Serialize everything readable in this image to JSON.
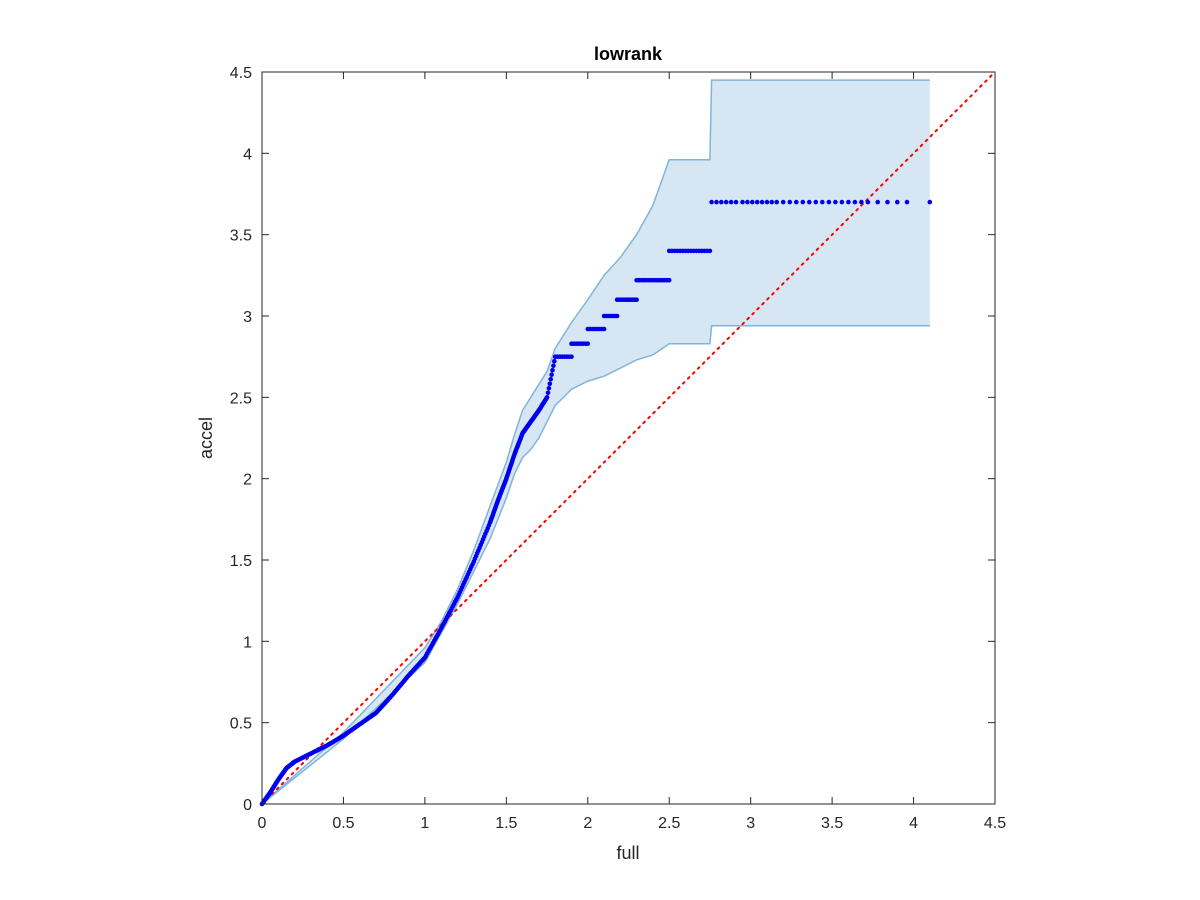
{
  "chart_data": {
    "type": "scatter",
    "title": "lowrank",
    "xlabel": "full",
    "ylabel": "accel",
    "xlim": [
      0,
      4.5
    ],
    "ylim": [
      0,
      4.5
    ],
    "xticks": [
      "0",
      "0.5",
      "1",
      "1.5",
      "2",
      "2.5",
      "3",
      "3.5",
      "4",
      "4.5"
    ],
    "yticks": [
      "0",
      "0.5",
      "1",
      "1.5",
      "2",
      "2.5",
      "3",
      "3.5",
      "4",
      "4.5"
    ],
    "grid": false,
    "reference_line": {
      "style": "dotted",
      "color": "#ff0000",
      "from": [
        0,
        0
      ],
      "to": [
        4.5,
        4.5
      ]
    },
    "colors": {
      "points": "#0000ee",
      "band_fill": "#d6e7f3",
      "band_edge": "#7fb4dc",
      "reference": "#ff0000"
    },
    "curve": {
      "x": [
        0,
        0.05,
        0.1,
        0.15,
        0.2,
        0.3,
        0.4,
        0.5,
        0.6,
        0.7,
        0.8,
        0.9,
        1.0,
        1.1,
        1.2,
        1.3,
        1.4,
        1.45,
        1.5,
        1.55,
        1.6,
        1.65,
        1.7,
        1.75
      ],
      "y": [
        0,
        0.07,
        0.15,
        0.22,
        0.26,
        0.31,
        0.36,
        0.42,
        0.49,
        0.56,
        0.67,
        0.79,
        0.9,
        1.08,
        1.27,
        1.49,
        1.73,
        1.87,
        2.0,
        2.15,
        2.28,
        2.35,
        2.42,
        2.5
      ]
    },
    "band": {
      "x": [
        0,
        0.5,
        1.0,
        1.1,
        1.2,
        1.3,
        1.4,
        1.5,
        1.55,
        1.6,
        1.65,
        1.7,
        1.75,
        1.8,
        1.9,
        2.0,
        2.1,
        2.2,
        2.3,
        2.4,
        2.5,
        2.75,
        2.76,
        4.1
      ],
      "upper": [
        0,
        0.44,
        0.96,
        1.12,
        1.32,
        1.56,
        1.83,
        2.1,
        2.27,
        2.42,
        2.5,
        2.58,
        2.66,
        2.8,
        2.96,
        3.1,
        3.25,
        3.36,
        3.5,
        3.68,
        3.96,
        3.96,
        4.45,
        4.45
      ],
      "lower": [
        0,
        0.4,
        0.87,
        1.05,
        1.23,
        1.43,
        1.63,
        1.88,
        2.03,
        2.13,
        2.18,
        2.25,
        2.35,
        2.45,
        2.55,
        2.6,
        2.63,
        2.68,
        2.73,
        2.76,
        2.83,
        2.83,
        2.94,
        2.94
      ]
    },
    "steps": [
      {
        "y": 2.75,
        "x_from": 1.8,
        "x_to": 1.9,
        "n": 8
      },
      {
        "y": 2.83,
        "x_from": 1.9,
        "x_to": 2.0,
        "n": 8
      },
      {
        "y": 2.92,
        "x_from": 2.0,
        "x_to": 2.1,
        "n": 8
      },
      {
        "y": 3.0,
        "x_from": 2.1,
        "x_to": 2.18,
        "n": 7
      },
      {
        "y": 3.1,
        "x_from": 2.18,
        "x_to": 2.3,
        "n": 10
      },
      {
        "y": 3.22,
        "x_from": 2.3,
        "x_to": 2.5,
        "n": 14
      },
      {
        "y": 3.4,
        "x_from": 2.5,
        "x_to": 2.75,
        "n": 16
      }
    ],
    "sparse_points": {
      "y": 3.7,
      "x": [
        2.76,
        2.79,
        2.82,
        2.85,
        2.88,
        2.91,
        2.95,
        2.98,
        3.01,
        3.04,
        3.07,
        3.1,
        3.13,
        3.16,
        3.2,
        3.24,
        3.28,
        3.32,
        3.36,
        3.4,
        3.44,
        3.48,
        3.52,
        3.56,
        3.6,
        3.64,
        3.68,
        3.72,
        3.78,
        3.84,
        3.9,
        3.96,
        4.1
      ]
    }
  }
}
